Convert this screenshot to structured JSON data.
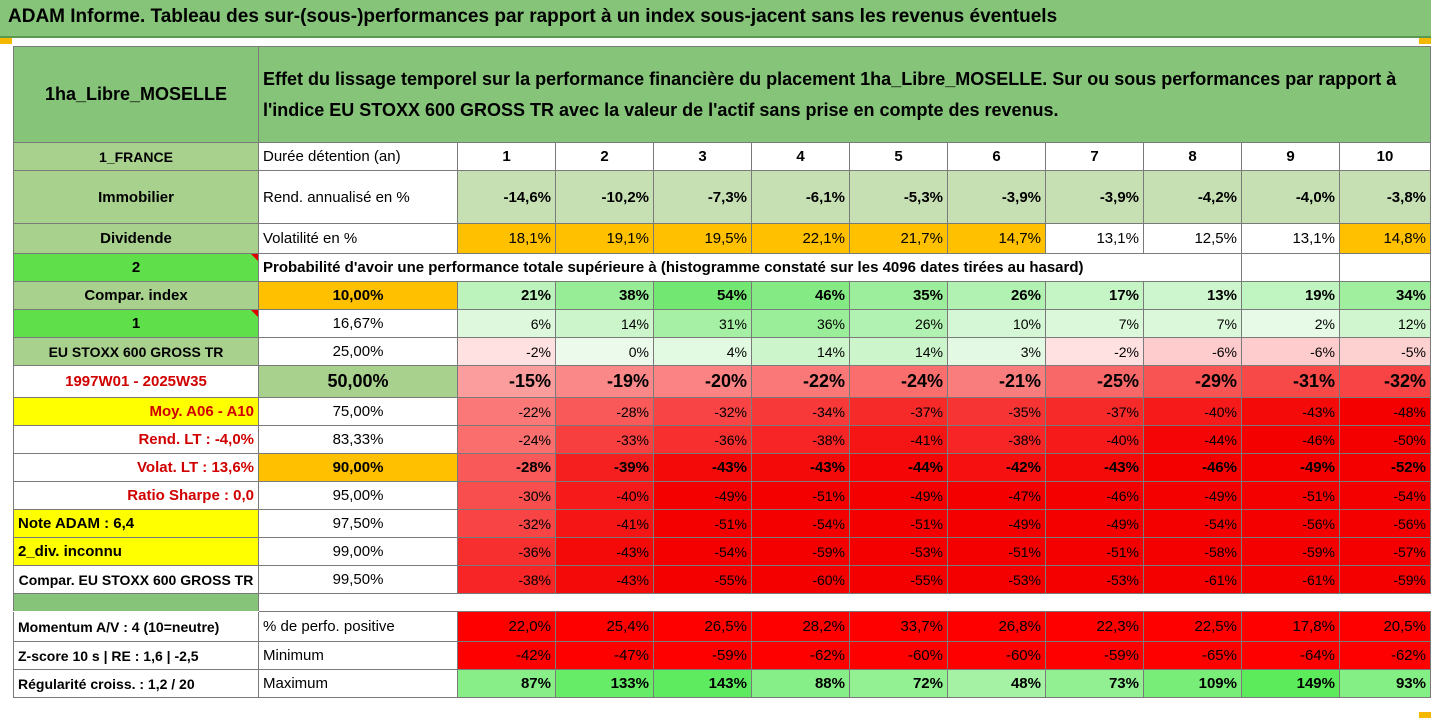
{
  "title": "ADAM Informe. Tableau des sur-(sous-)performances par rapport à un index sous-jacent sans les revenus éventuels",
  "header": {
    "asset": "1ha_Libre_MOSELLE",
    "description_line1": "Effet du lissage temporel sur la performance financière du placement 1ha_Libre_MOSELLE. Sur ou sous performances par rapport à",
    "description_line2": "l'indice EU STOXX 600 GROSS TR avec la valeur de l'actif sans prise en compte des revenus."
  },
  "left_labels": {
    "country": "1_FRANCE",
    "category": "Immobilier",
    "dividend": "Dividende",
    "two": "2",
    "compar_index": "Compar. index",
    "one": "1",
    "index_name": "EU STOXX 600 GROSS TR",
    "period": "1997W01 - 2025W35",
    "moy": "Moy. A06 - A10",
    "rend_lt": "Rend. LT :   -4,0%",
    "volat_lt": "Volat. LT :   13,6%",
    "sharpe": "Ratio Sharpe :   0,0",
    "note": "Note ADAM : 6,4",
    "div": "2_div. inconnu",
    "compar_full": "Compar. EU STOXX 600 GROSS TR",
    "momentum": "Momentum A/V : 4 (10=neutre)",
    "zscore": "Z-score 10 s  |  RE : 1,6  |  -2,5",
    "regularite": "Régularité croiss. : 1,2 / 20"
  },
  "row_labels": {
    "duree": "Durée détention (an)",
    "rend": "Rend. annualisé en %",
    "vol": "Volatilité en %",
    "proba": "Probabilité d'avoir une performance totale supérieure à (histogramme constaté sur les 4096 dates tirées au hasard)",
    "pos": "% de perfo. positive",
    "min": "Minimum",
    "max": "Maximum"
  },
  "years": [
    "1",
    "2",
    "3",
    "4",
    "5",
    "6",
    "7",
    "8",
    "9",
    "10"
  ],
  "rend": [
    "-14,6%",
    "-10,2%",
    "-7,3%",
    "-6,1%",
    "-5,3%",
    "-3,9%",
    "-3,9%",
    "-4,2%",
    "-4,0%",
    "-3,8%"
  ],
  "vol": [
    "18,1%",
    "19,1%",
    "19,5%",
    "22,1%",
    "21,7%",
    "14,7%",
    "13,1%",
    "12,5%",
    "13,1%",
    "14,8%"
  ],
  "vol_highlight": [
    true,
    true,
    true,
    true,
    true,
    true,
    false,
    false,
    false,
    true
  ],
  "percentiles": [
    {
      "p": "10,00%",
      "v": [
        "21%",
        "38%",
        "54%",
        "46%",
        "35%",
        "26%",
        "17%",
        "13%",
        "19%",
        "34%"
      ]
    },
    {
      "p": "16,67%",
      "v": [
        "6%",
        "14%",
        "31%",
        "36%",
        "26%",
        "10%",
        "7%",
        "7%",
        "2%",
        "12%"
      ]
    },
    {
      "p": "25,00%",
      "v": [
        "-2%",
        "0%",
        "4%",
        "14%",
        "14%",
        "3%",
        "-2%",
        "-6%",
        "-6%",
        "-5%"
      ]
    },
    {
      "p": "50,00%",
      "v": [
        "-15%",
        "-19%",
        "-20%",
        "-22%",
        "-24%",
        "-21%",
        "-25%",
        "-29%",
        "-31%",
        "-32%"
      ]
    },
    {
      "p": "75,00%",
      "v": [
        "-22%",
        "-28%",
        "-32%",
        "-34%",
        "-37%",
        "-35%",
        "-37%",
        "-40%",
        "-43%",
        "-48%"
      ]
    },
    {
      "p": "83,33%",
      "v": [
        "-24%",
        "-33%",
        "-36%",
        "-38%",
        "-41%",
        "-38%",
        "-40%",
        "-44%",
        "-46%",
        "-50%"
      ]
    },
    {
      "p": "90,00%",
      "v": [
        "-28%",
        "-39%",
        "-43%",
        "-43%",
        "-44%",
        "-42%",
        "-43%",
        "-46%",
        "-49%",
        "-52%"
      ]
    },
    {
      "p": "95,00%",
      "v": [
        "-30%",
        "-40%",
        "-49%",
        "-51%",
        "-49%",
        "-47%",
        "-46%",
        "-49%",
        "-51%",
        "-54%"
      ]
    },
    {
      "p": "97,50%",
      "v": [
        "-32%",
        "-41%",
        "-51%",
        "-54%",
        "-51%",
        "-49%",
        "-49%",
        "-54%",
        "-56%",
        "-56%"
      ]
    },
    {
      "p": "99,00%",
      "v": [
        "-36%",
        "-43%",
        "-54%",
        "-59%",
        "-53%",
        "-51%",
        "-51%",
        "-58%",
        "-59%",
        "-57%"
      ]
    },
    {
      "p": "99,50%",
      "v": [
        "-38%",
        "-43%",
        "-55%",
        "-60%",
        "-55%",
        "-53%",
        "-53%",
        "-61%",
        "-61%",
        "-59%"
      ]
    }
  ],
  "pos": [
    "22,0%",
    "25,4%",
    "26,5%",
    "28,2%",
    "33,7%",
    "26,8%",
    "22,3%",
    "22,5%",
    "17,8%",
    "20,5%"
  ],
  "min": [
    "-42%",
    "-47%",
    "-59%",
    "-62%",
    "-60%",
    "-60%",
    "-59%",
    "-65%",
    "-64%",
    "-62%"
  ],
  "max": [
    "87%",
    "133%",
    "143%",
    "88%",
    "72%",
    "48%",
    "73%",
    "109%",
    "149%",
    "93%"
  ],
  "colors": {
    "green": "#86c47a",
    "bright_green": "#5fe04a",
    "yellow": "#ffff00",
    "orange": "#ffc000",
    "red": "#ff0000"
  }
}
